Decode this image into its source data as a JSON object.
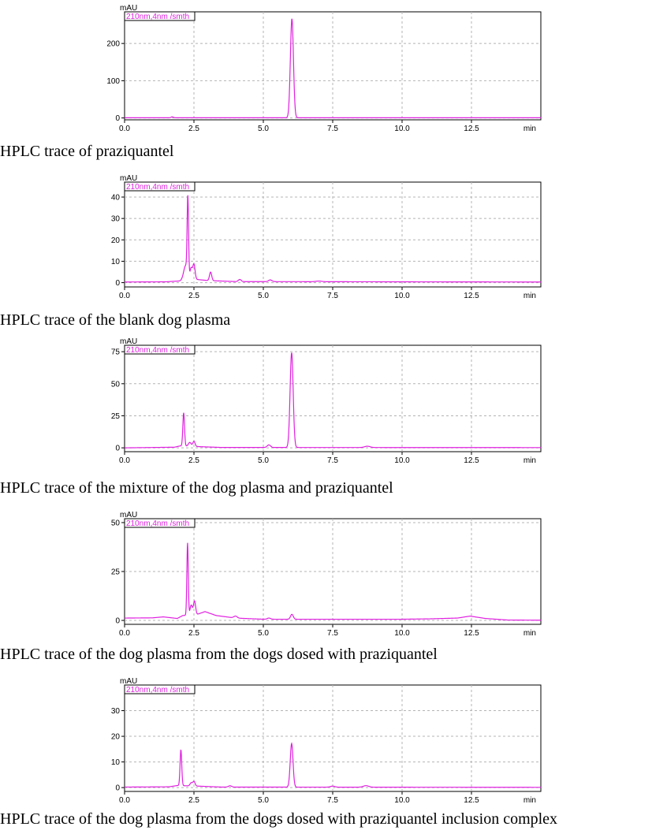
{
  "chart_data": [
    {
      "type": "line",
      "caption": "HPLC trace of praziquantel",
      "y_unit": "mAU",
      "x_unit": "min",
      "legend": "210nm,4nm /smth",
      "xlim": [
        0,
        15
      ],
      "ylim": [
        -5,
        285
      ],
      "yticks": [
        0,
        100,
        200
      ],
      "xticks": [
        "0.0",
        "2.5",
        "5.0",
        "7.5",
        "10.0",
        "12.5"
      ],
      "grid": true,
      "color": "#e020e0",
      "baseline": [
        [
          0,
          0.5
        ],
        [
          15,
          0.5
        ]
      ],
      "peaks": [
        {
          "x": 1.72,
          "height": 2.5,
          "width": 0.04
        },
        {
          "x": 6.03,
          "height": 266,
          "width": 0.055
        }
      ]
    },
    {
      "type": "line",
      "caption": "HPLC trace of the blank dog plasma",
      "y_unit": "mAU",
      "x_unit": "min",
      "legend": "210nm,4nm /smth",
      "xlim": [
        0,
        15
      ],
      "ylim": [
        -2,
        47
      ],
      "yticks": [
        0,
        10,
        20,
        30,
        40
      ],
      "xticks": [
        "0.0",
        "2.5",
        "5.0",
        "7.5",
        "10.0",
        "12.5"
      ],
      "grid": true,
      "color": "#e020e0",
      "baseline": [
        [
          0,
          0.3
        ],
        [
          1.5,
          0.4
        ],
        [
          2.0,
          0.8
        ],
        [
          2.2,
          2
        ],
        [
          3.0,
          1
        ],
        [
          4.0,
          0.5
        ],
        [
          15,
          0.3
        ]
      ],
      "peaks": [
        {
          "x": 2.2,
          "height": 6,
          "width": 0.07
        },
        {
          "x": 2.28,
          "height": 36,
          "width": 0.025
        },
        {
          "x": 2.4,
          "height": 5,
          "width": 0.04
        },
        {
          "x": 2.5,
          "height": 7,
          "width": 0.04
        },
        {
          "x": 3.1,
          "height": 4,
          "width": 0.04
        },
        {
          "x": 4.15,
          "height": 1,
          "width": 0.05
        },
        {
          "x": 5.25,
          "height": 0.8,
          "width": 0.06
        },
        {
          "x": 7.0,
          "height": 0.3,
          "width": 0.1
        }
      ]
    },
    {
      "type": "line",
      "caption": "HPLC trace of the mixture of the dog plasma and praziquantel",
      "y_unit": "mAU",
      "x_unit": "min",
      "legend": "210nm,4nm /smth",
      "xlim": [
        0,
        15
      ],
      "ylim": [
        -3,
        80
      ],
      "yticks": [
        0,
        25,
        50,
        75
      ],
      "xticks": [
        "0.0",
        "2.5",
        "5.0",
        "7.5",
        "10.0",
        "12.5"
      ],
      "grid": true,
      "color": "#e020e0",
      "baseline": [
        [
          0,
          0
        ],
        [
          1.8,
          0.5
        ],
        [
          2.0,
          1.5
        ],
        [
          2.6,
          1
        ],
        [
          3.5,
          0.3
        ],
        [
          15,
          0.2
        ]
      ],
      "peaks": [
        {
          "x": 2.13,
          "height": 26,
          "width": 0.03
        },
        {
          "x": 2.35,
          "height": 3,
          "width": 0.05
        },
        {
          "x": 2.5,
          "height": 4,
          "width": 0.04
        },
        {
          "x": 5.2,
          "height": 2,
          "width": 0.06
        },
        {
          "x": 6.02,
          "height": 74,
          "width": 0.055
        },
        {
          "x": 8.75,
          "height": 1,
          "width": 0.1
        }
      ]
    },
    {
      "type": "line",
      "caption": "HPLC trace of the dog plasma from the dogs dosed with praziquantel",
      "y_unit": "mAU",
      "x_unit": "min",
      "legend": "210nm,4nm /smth",
      "xlim": [
        0,
        15
      ],
      "ylim": [
        -2,
        52
      ],
      "yticks": [
        0,
        25,
        50
      ],
      "xticks": [
        "0.0",
        "2.5",
        "5.0",
        "7.5",
        "10.0",
        "12.5"
      ],
      "grid": true,
      "color": "#e020e0",
      "baseline": [
        [
          0,
          1.2
        ],
        [
          1.0,
          1.3
        ],
        [
          1.4,
          1.8
        ],
        [
          1.9,
          1.0
        ],
        [
          2.1,
          2.5
        ],
        [
          2.6,
          3
        ],
        [
          2.9,
          4.5
        ],
        [
          3.3,
          2.5
        ],
        [
          4.0,
          1.2
        ],
        [
          5.0,
          0.6
        ],
        [
          10.0,
          0.6
        ],
        [
          11.0,
          0.8
        ],
        [
          12.0,
          1.2
        ],
        [
          12.45,
          2.2
        ],
        [
          13.0,
          1
        ],
        [
          13.8,
          0.2
        ],
        [
          15,
          0.1
        ]
      ],
      "peaks": [
        {
          "x": 2.27,
          "height": 37,
          "width": 0.025
        },
        {
          "x": 2.4,
          "height": 5,
          "width": 0.04
        },
        {
          "x": 2.52,
          "height": 7,
          "width": 0.04
        },
        {
          "x": 4.0,
          "height": 1,
          "width": 0.06
        },
        {
          "x": 5.2,
          "height": 0.6,
          "width": 0.06
        },
        {
          "x": 6.03,
          "height": 2.5,
          "width": 0.05
        }
      ]
    },
    {
      "type": "line",
      "caption": "HPLC trace of the dog plasma from the dogs dosed with praziquantel inclusion complex",
      "y_unit": "mAU",
      "x_unit": "min",
      "legend": "210nm,4nm /smth",
      "xlim": [
        0,
        15
      ],
      "ylim": [
        -1.5,
        40
      ],
      "yticks": [
        0,
        10,
        20,
        30
      ],
      "xticks": [
        "0.0",
        "2.5",
        "5.0",
        "7.5",
        "10.0",
        "12.5"
      ],
      "grid": true,
      "color": "#e020e0",
      "baseline": [
        [
          0,
          0.2
        ],
        [
          1.6,
          0.3
        ],
        [
          1.9,
          0.8
        ],
        [
          2.6,
          0.6
        ],
        [
          3.5,
          0.2
        ],
        [
          15,
          0.1
        ]
      ],
      "peaks": [
        {
          "x": 2.03,
          "height": 14,
          "width": 0.03
        },
        {
          "x": 2.4,
          "height": 1.2,
          "width": 0.04
        },
        {
          "x": 2.5,
          "height": 1.8,
          "width": 0.04
        },
        {
          "x": 3.8,
          "height": 0.5,
          "width": 0.06
        },
        {
          "x": 6.02,
          "height": 17,
          "width": 0.05
        },
        {
          "x": 7.5,
          "height": 0.4,
          "width": 0.08
        },
        {
          "x": 8.7,
          "height": 0.6,
          "width": 0.1
        }
      ]
    }
  ]
}
